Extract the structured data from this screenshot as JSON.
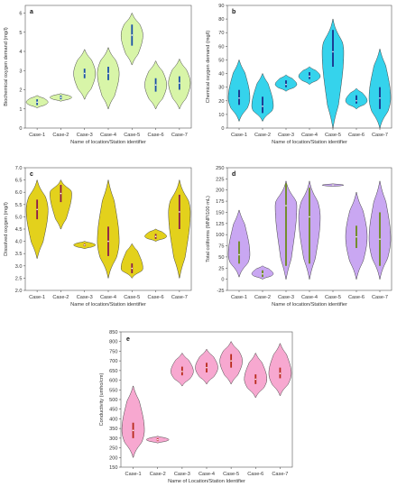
{
  "chart_data": [
    {
      "panel": "a",
      "type": "violin",
      "ylabel": "Biochemical oxygen demand (mg/l)",
      "xlabel": "Name of location/Station identifier",
      "categories": [
        "Case-1",
        "Case-2",
        "Case-3",
        "Case-4",
        "Case-5",
        "Case-6",
        "Case-7"
      ],
      "yticks": [
        "0",
        "1",
        "2",
        "3",
        "4",
        "5",
        "6"
      ],
      "ylim": [
        0,
        6.4
      ],
      "colors": {
        "fill": "#d8f5a8",
        "box": "#1a4fa8"
      },
      "violins": [
        {
          "min": 1.05,
          "max": 1.7,
          "q1": 1.2,
          "q3": 1.5,
          "median": 1.35
        },
        {
          "min": 1.4,
          "max": 1.8,
          "q1": 1.5,
          "q3": 1.7,
          "median": 1.6
        },
        {
          "min": 1.5,
          "max": 4.1,
          "q1": 2.6,
          "q3": 3.1,
          "median": 2.85
        },
        {
          "min": 1.0,
          "max": 4.2,
          "q1": 2.5,
          "q3": 3.2,
          "median": 2.85
        },
        {
          "min": 3.3,
          "max": 6.0,
          "q1": 4.3,
          "q3": 5.4,
          "median": 4.85
        },
        {
          "min": 1.0,
          "max": 3.5,
          "q1": 1.9,
          "q3": 2.6,
          "median": 2.25
        },
        {
          "min": 1.0,
          "max": 3.6,
          "q1": 2.0,
          "q3": 2.7,
          "median": 2.35
        }
      ]
    },
    {
      "panel": "b",
      "type": "violin",
      "ylabel": "Chemical oxygen demand (mg/l)",
      "xlabel": "Name of location/Station identifier",
      "categories": [
        "Case-1",
        "Case-2",
        "Case-3",
        "Case-4",
        "Case-5",
        "Case-6",
        "Case-7"
      ],
      "yticks": [
        "0",
        "10",
        "20",
        "30",
        "40",
        "50",
        "60",
        "70",
        "80",
        "90"
      ],
      "ylim": [
        0,
        90
      ],
      "colors": {
        "fill": "#35d3ec",
        "box": "#1a2f8a"
      },
      "violins": [
        {
          "min": 5,
          "max": 50,
          "q1": 17,
          "q3": 28,
          "median": 22
        },
        {
          "min": 5,
          "max": 40,
          "q1": 11,
          "q3": 23,
          "median": 16
        },
        {
          "min": 27,
          "max": 39,
          "q1": 30,
          "q3": 35,
          "median": 32
        },
        {
          "min": 32,
          "max": 45,
          "q1": 36,
          "q3": 41,
          "median": 38
        },
        {
          "min": 0,
          "max": 80,
          "q1": 45,
          "q3": 72,
          "median": 56
        },
        {
          "min": 14,
          "max": 29,
          "q1": 18,
          "q3": 24,
          "median": 20
        },
        {
          "min": 0,
          "max": 58,
          "q1": 14,
          "q3": 30,
          "median": 22
        }
      ]
    },
    {
      "panel": "c",
      "type": "violin",
      "ylabel": "Dissolved oxygen (mg/l)",
      "xlabel": "Name of location/Station identifier",
      "categories": [
        "Case-1",
        "Case-2",
        "Case-3",
        "Case-4",
        "Case-5",
        "Case-6",
        "Case-7"
      ],
      "yticks": [
        "2.0",
        "2.5",
        "3.0",
        "3.5",
        "4.0",
        "4.5",
        "5.0",
        "5.5",
        "6.0",
        "6.5",
        "7.0"
      ],
      "ylim": [
        2.0,
        7.0
      ],
      "colors": {
        "fill": "#e3d11c",
        "box": "#8b1a4a"
      },
      "violins": [
        {
          "min": 3.3,
          "max": 6.5,
          "q1": 4.9,
          "q3": 5.7,
          "median": 5.3
        },
        {
          "min": 4.5,
          "max": 6.5,
          "q1": 5.6,
          "q3": 6.3,
          "median": 5.95
        },
        {
          "min": 3.7,
          "max": 4.0,
          "q1": 3.8,
          "q3": 3.9,
          "median": 3.85
        },
        {
          "min": 2.5,
          "max": 6.5,
          "q1": 3.4,
          "q3": 4.6,
          "median": 4.0
        },
        {
          "min": 2.5,
          "max": 3.9,
          "q1": 2.7,
          "q3": 3.1,
          "median": 2.9
        },
        {
          "min": 4.0,
          "max": 4.5,
          "q1": 4.1,
          "q3": 4.3,
          "median": 4.2
        },
        {
          "min": 2.5,
          "max": 6.5,
          "q1": 4.5,
          "q3": 5.9,
          "median": 5.2
        }
      ]
    },
    {
      "panel": "d",
      "type": "violin",
      "ylabel": "Total coliforms (MNP/100 mL)",
      "xlabel": "Name of location/Station identifier",
      "categories": [
        "Case-1",
        "Case-2",
        "Case-3",
        "Case-4",
        "Case-5",
        "Case-6",
        "Case-7"
      ],
      "yticks": [
        "-25",
        "0",
        "25",
        "50",
        "75",
        "100",
        "125",
        "150",
        "175",
        "200",
        "225",
        "250"
      ],
      "ylim": [
        -25,
        250
      ],
      "colors": {
        "fill": "#c9a7f2",
        "box": "#6b8a1a"
      },
      "violins": [
        {
          "min": 5,
          "max": 155,
          "q1": 35,
          "q3": 85,
          "median": 55
        },
        {
          "min": 0,
          "max": 30,
          "q1": 5,
          "q3": 20,
          "median": 12
        },
        {
          "min": 0,
          "max": 220,
          "q1": 30,
          "q3": 215,
          "median": 165
        },
        {
          "min": 0,
          "max": 220,
          "q1": 35,
          "q3": 205,
          "median": 140
        },
        {
          "min": 208,
          "max": 214,
          "q1": 210,
          "q3": 212,
          "median": 211
        },
        {
          "min": 0,
          "max": 195,
          "q1": 70,
          "q3": 120,
          "median": 95
        },
        {
          "min": 0,
          "max": 220,
          "q1": 30,
          "q3": 150,
          "median": 90
        }
      ]
    },
    {
      "panel": "e",
      "type": "violin",
      "ylabel": "Conductivity (umho/cm)",
      "xlabel": "Name of Location/Station Identifier",
      "categories": [
        "Case-1",
        "Case-2",
        "Case-3",
        "Case-4",
        "Case-5",
        "Case-6",
        "Case-7"
      ],
      "yticks": [
        "150",
        "200",
        "250",
        "300",
        "350",
        "400",
        "450",
        "500",
        "550",
        "600",
        "650",
        "700",
        "750",
        "800",
        "850"
      ],
      "ylim": [
        150,
        850
      ],
      "colors": {
        "fill": "#f7a8d0",
        "box": "#b82a1a"
      },
      "violins": [
        {
          "min": 200,
          "max": 570,
          "q1": 300,
          "q3": 380,
          "median": 340
        },
        {
          "min": 275,
          "max": 310,
          "q1": 285,
          "q3": 300,
          "median": 292
        },
        {
          "min": 570,
          "max": 740,
          "q1": 625,
          "q3": 670,
          "median": 645
        },
        {
          "min": 580,
          "max": 760,
          "q1": 640,
          "q3": 690,
          "median": 665
        },
        {
          "min": 580,
          "max": 800,
          "q1": 665,
          "q3": 735,
          "median": 700
        },
        {
          "min": 510,
          "max": 740,
          "q1": 580,
          "q3": 630,
          "median": 605
        },
        {
          "min": 520,
          "max": 790,
          "q1": 610,
          "q3": 665,
          "median": 635
        }
      ]
    }
  ]
}
